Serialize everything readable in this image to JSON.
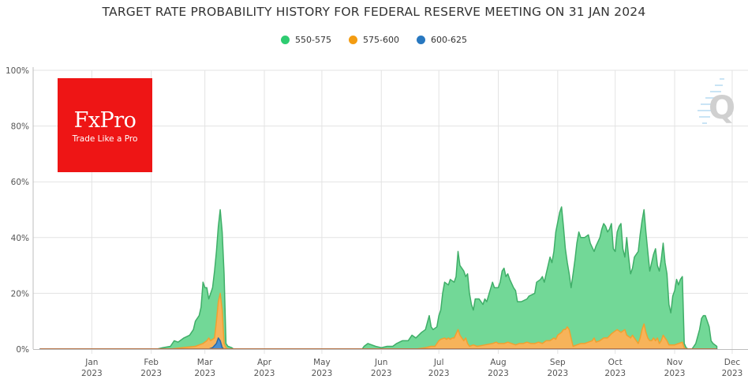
{
  "chart_data": {
    "type": "area",
    "title": "TARGET RATE PROBABILITY HISTORY FOR FEDERAL RESERVE MEETING ON 31 JAN 2024",
    "xlabel": "",
    "ylabel": "",
    "ylim": [
      0,
      100
    ],
    "grid": true,
    "legend_position": "top-center",
    "y_ticks": [
      "0%",
      "20%",
      "40%",
      "60%",
      "80%",
      "100%"
    ],
    "x_ticks": [
      {
        "month": "Jan",
        "year": "2023",
        "day": 31
      },
      {
        "month": "Feb",
        "year": "2023",
        "day": 62
      },
      {
        "month": "Mar",
        "year": "2023",
        "day": 90
      },
      {
        "month": "Apr",
        "year": "2023",
        "day": 121
      },
      {
        "month": "May",
        "year": "2023",
        "day": 151
      },
      {
        "month": "Jun",
        "year": "2023",
        "day": 182
      },
      {
        "month": "Jul",
        "year": "2023",
        "day": 212
      },
      {
        "month": "Aug",
        "year": "2023",
        "day": 243
      },
      {
        "month": "Sep",
        "year": "2023",
        "day": 274
      },
      {
        "month": "Oct",
        "year": "2023",
        "day": 304
      },
      {
        "month": "Nov",
        "year": "2023",
        "day": 335
      },
      {
        "month": "Dec",
        "year": "2023",
        "day": 365
      }
    ],
    "x_unit": "days since 2022-12-01",
    "xlim": [
      0,
      369
    ],
    "series": [
      {
        "name": "550-575",
        "color": "#2ecc71",
        "points": [
          [
            4,
            0
          ],
          [
            65,
            0
          ],
          [
            68,
            0.5
          ],
          [
            72,
            1
          ],
          [
            74,
            3
          ],
          [
            76,
            2.5
          ],
          [
            79,
            4
          ],
          [
            82,
            5
          ],
          [
            84,
            7
          ],
          [
            85,
            10
          ],
          [
            87,
            12
          ],
          [
            88,
            15
          ],
          [
            89,
            24
          ],
          [
            90,
            22
          ],
          [
            91,
            22
          ],
          [
            92,
            18
          ],
          [
            93,
            20
          ],
          [
            94,
            22
          ],
          [
            95,
            28
          ],
          [
            96,
            35
          ],
          [
            97,
            44
          ],
          [
            98,
            50
          ],
          [
            99,
            42
          ],
          [
            100,
            27
          ],
          [
            101,
            2
          ],
          [
            102,
            1
          ],
          [
            104,
            0.5
          ],
          [
            105,
            0
          ],
          [
            172,
            0
          ],
          [
            173,
            1
          ],
          [
            175,
            2
          ],
          [
            177,
            1.5
          ],
          [
            179,
            1
          ],
          [
            182,
            0.5
          ],
          [
            185,
            1
          ],
          [
            188,
            1
          ],
          [
            190,
            2
          ],
          [
            193,
            3
          ],
          [
            196,
            3
          ],
          [
            198,
            5
          ],
          [
            200,
            4
          ],
          [
            203,
            6
          ],
          [
            205,
            7
          ],
          [
            207,
            12
          ],
          [
            208,
            8
          ],
          [
            209,
            7
          ],
          [
            211,
            8
          ],
          [
            212,
            12
          ],
          [
            213,
            14
          ],
          [
            214,
            20
          ],
          [
            215,
            24
          ],
          [
            217,
            23
          ],
          [
            218,
            25
          ],
          [
            220,
            24
          ],
          [
            221,
            26
          ],
          [
            222,
            35
          ],
          [
            223,
            30
          ],
          [
            225,
            28
          ],
          [
            226,
            26
          ],
          [
            227,
            27
          ],
          [
            228,
            20
          ],
          [
            229,
            16
          ],
          [
            230,
            14
          ],
          [
            231,
            18
          ],
          [
            233,
            18
          ],
          [
            235,
            16
          ],
          [
            236,
            18
          ],
          [
            237,
            17
          ],
          [
            240,
            24
          ],
          [
            241,
            22
          ],
          [
            243,
            22
          ],
          [
            244,
            24
          ],
          [
            245,
            28
          ],
          [
            246,
            29
          ],
          [
            247,
            26
          ],
          [
            248,
            27
          ],
          [
            249,
            25
          ],
          [
            251,
            22
          ],
          [
            252,
            21
          ],
          [
            253,
            17
          ],
          [
            255,
            17
          ],
          [
            258,
            18
          ],
          [
            259,
            19
          ],
          [
            262,
            20
          ],
          [
            263,
            24
          ],
          [
            265,
            25
          ],
          [
            266,
            26
          ],
          [
            267,
            24
          ],
          [
            268,
            27
          ],
          [
            270,
            33
          ],
          [
            271,
            31
          ],
          [
            272,
            35
          ],
          [
            273,
            42
          ],
          [
            275,
            49
          ],
          [
            276,
            51
          ],
          [
            277,
            44
          ],
          [
            278,
            36
          ],
          [
            279,
            31
          ],
          [
            280,
            27
          ],
          [
            281,
            22
          ],
          [
            282,
            27
          ],
          [
            283,
            32
          ],
          [
            284,
            38
          ],
          [
            285,
            42
          ],
          [
            286,
            40
          ],
          [
            288,
            40
          ],
          [
            290,
            41
          ],
          [
            291,
            38
          ],
          [
            293,
            35
          ],
          [
            294,
            37
          ],
          [
            296,
            40
          ],
          [
            297,
            43
          ],
          [
            298,
            45
          ],
          [
            299,
            44
          ],
          [
            300,
            42
          ],
          [
            301,
            43
          ],
          [
            302,
            45
          ],
          [
            303,
            36
          ],
          [
            304,
            35
          ],
          [
            305,
            42
          ],
          [
            306,
            44
          ],
          [
            307,
            45
          ],
          [
            308,
            36
          ],
          [
            309,
            33
          ],
          [
            310,
            40
          ],
          [
            311,
            33
          ],
          [
            312,
            27
          ],
          [
            313,
            29
          ],
          [
            314,
            33
          ],
          [
            316,
            35
          ],
          [
            317,
            41
          ],
          [
            318,
            46
          ],
          [
            319,
            50
          ],
          [
            320,
            42
          ],
          [
            321,
            35
          ],
          [
            322,
            28
          ],
          [
            323,
            31
          ],
          [
            324,
            34
          ],
          [
            325,
            36
          ],
          [
            326,
            30
          ],
          [
            327,
            28
          ],
          [
            328,
            32
          ],
          [
            329,
            38
          ],
          [
            330,
            31
          ],
          [
            331,
            27
          ],
          [
            332,
            16
          ],
          [
            333,
            13
          ],
          [
            334,
            19
          ],
          [
            335,
            21
          ],
          [
            336,
            25
          ],
          [
            337,
            23
          ],
          [
            338,
            25
          ],
          [
            339,
            26
          ],
          [
            340,
            2
          ],
          [
            341,
            0.5
          ],
          [
            342,
            0
          ],
          [
            344,
            0
          ],
          [
            345,
            1
          ],
          [
            346,
            2
          ],
          [
            348,
            7
          ],
          [
            349,
            11
          ],
          [
            350,
            12
          ],
          [
            351,
            12
          ],
          [
            352,
            10
          ],
          [
            353,
            8
          ],
          [
            354,
            3
          ],
          [
            355,
            2
          ],
          [
            356,
            1.5
          ],
          [
            357,
            1
          ]
        ]
      },
      {
        "name": "575-600",
        "color": "#f39c12",
        "points": [
          [
            4,
            0
          ],
          [
            72,
            0
          ],
          [
            78,
            0.5
          ],
          [
            85,
            1
          ],
          [
            89,
            2
          ],
          [
            91,
            3
          ],
          [
            92,
            4
          ],
          [
            93,
            3
          ],
          [
            95,
            4
          ],
          [
            96,
            10
          ],
          [
            97,
            17
          ],
          [
            98,
            20
          ],
          [
            99,
            14
          ],
          [
            100,
            2
          ],
          [
            101,
            0.5
          ],
          [
            102,
            0
          ],
          [
            200,
            0
          ],
          [
            205,
            0.5
          ],
          [
            208,
            1
          ],
          [
            210,
            1
          ],
          [
            212,
            3
          ],
          [
            213,
            3.5
          ],
          [
            215,
            4
          ],
          [
            216,
            3.5
          ],
          [
            217,
            4
          ],
          [
            218,
            3.5
          ],
          [
            219,
            4
          ],
          [
            220,
            4
          ],
          [
            222,
            7
          ],
          [
            223,
            5
          ],
          [
            224,
            4
          ],
          [
            225,
            3
          ],
          [
            226,
            4
          ],
          [
            227,
            2
          ],
          [
            228,
            1
          ],
          [
            230,
            1.5
          ],
          [
            232,
            1
          ],
          [
            236,
            1.5
          ],
          [
            240,
            2
          ],
          [
            242,
            2.5
          ],
          [
            243,
            2
          ],
          [
            246,
            2
          ],
          [
            248,
            2.5
          ],
          [
            250,
            2
          ],
          [
            252,
            1.5
          ],
          [
            254,
            2
          ],
          [
            256,
            2
          ],
          [
            258,
            2.5
          ],
          [
            260,
            2
          ],
          [
            262,
            2
          ],
          [
            264,
            2.5
          ],
          [
            266,
            2
          ],
          [
            268,
            3
          ],
          [
            270,
            3
          ],
          [
            272,
            4
          ],
          [
            273,
            3.5
          ],
          [
            274,
            5
          ],
          [
            276,
            6
          ],
          [
            277,
            7
          ],
          [
            278,
            7
          ],
          [
            279,
            8
          ],
          [
            280,
            7
          ],
          [
            281,
            4
          ],
          [
            282,
            1
          ],
          [
            284,
            1.5
          ],
          [
            286,
            2
          ],
          [
            288,
            2
          ],
          [
            290,
            2.5
          ],
          [
            292,
            3
          ],
          [
            293,
            4
          ],
          [
            294,
            2.5
          ],
          [
            296,
            3
          ],
          [
            298,
            4
          ],
          [
            300,
            4
          ],
          [
            302,
            5.5
          ],
          [
            303,
            6
          ],
          [
            305,
            7
          ],
          [
            307,
            6
          ],
          [
            309,
            7
          ],
          [
            310,
            5
          ],
          [
            312,
            4
          ],
          [
            313,
            5
          ],
          [
            314,
            4
          ],
          [
            316,
            2
          ],
          [
            317,
            4
          ],
          [
            318,
            7
          ],
          [
            319,
            9
          ],
          [
            320,
            6
          ],
          [
            321,
            4
          ],
          [
            322,
            3
          ],
          [
            323,
            3
          ],
          [
            324,
            4
          ],
          [
            325,
            3
          ],
          [
            326,
            4
          ],
          [
            327,
            2
          ],
          [
            328,
            3
          ],
          [
            329,
            5
          ],
          [
            330,
            4
          ],
          [
            331,
            3
          ],
          [
            332,
            1.5
          ],
          [
            335,
            1.5
          ],
          [
            337,
            2
          ],
          [
            339,
            2.5
          ],
          [
            340,
            0.5
          ],
          [
            341,
            0
          ],
          [
            357,
            0
          ]
        ]
      },
      {
        "name": "600-625",
        "color": "#2878c0",
        "points": [
          [
            4,
            0
          ],
          [
            92,
            0
          ],
          [
            94,
            0.5
          ],
          [
            96,
            2
          ],
          [
            97,
            4
          ],
          [
            98,
            3
          ],
          [
            99,
            0.5
          ],
          [
            100,
            0
          ],
          [
            357,
            0
          ]
        ]
      }
    ]
  },
  "legend": [
    {
      "label": "550-575",
      "color": "#2ecc71"
    },
    {
      "label": "575-600",
      "color": "#f39c12"
    },
    {
      "label": "600-625",
      "color": "#2878c0"
    }
  ],
  "logo": {
    "brand": "FxPro",
    "tagline": "Trade Like a Pro"
  },
  "watermark": {
    "letter": "Q"
  }
}
